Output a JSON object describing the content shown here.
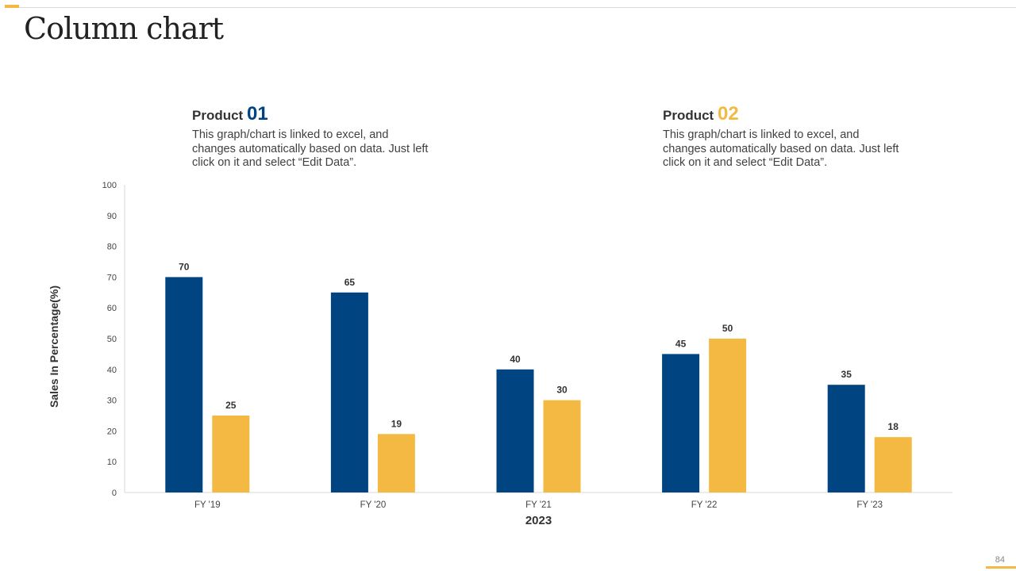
{
  "slide": {
    "title": "Column chart",
    "page_number": "84"
  },
  "legends": [
    {
      "label": "Product",
      "number": "01",
      "color": "#004481",
      "description": "This graph/chart is linked to excel, and changes automatically based on data. Just left click on it and select “Edit Data”."
    },
    {
      "label": "Product",
      "number": "02",
      "color": "#f4b942",
      "description": "This graph/chart is linked to excel, and changes automatically based on data. Just left click on it and select “Edit Data”."
    }
  ],
  "chart_data": {
    "type": "bar",
    "title": "",
    "xlabel": "2023",
    "ylabel": "Sales In Percentage(%)",
    "categories": [
      "FY '19",
      "FY '20",
      "FY '21",
      "FY '22",
      "FY '23"
    ],
    "series": [
      {
        "name": "Product 01",
        "color": "#004481",
        "values": [
          70,
          65,
          40,
          45,
          35
        ]
      },
      {
        "name": "Product 02",
        "color": "#f4b942",
        "values": [
          25,
          19,
          30,
          50,
          18
        ]
      }
    ],
    "ylim": [
      0,
      100
    ],
    "yticks": [
      0,
      10,
      20,
      30,
      40,
      50,
      60,
      70,
      80,
      90,
      100
    ],
    "grid": false,
    "data_labels": true
  }
}
